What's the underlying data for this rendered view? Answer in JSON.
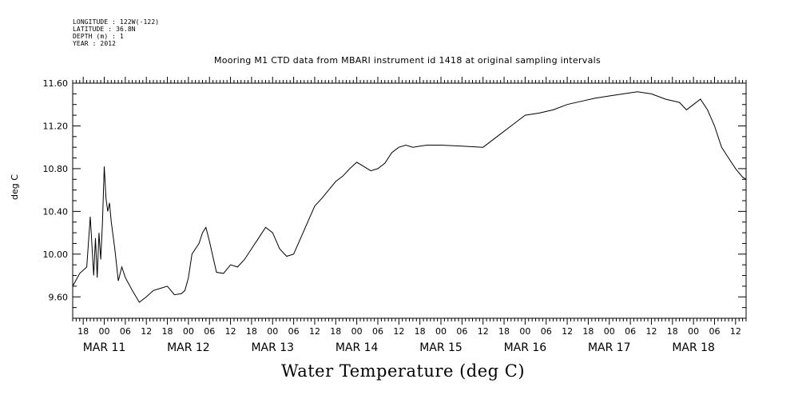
{
  "meta_lines": [
    "LONGITUDE : 122W(-122)",
    "LATITUDE : 36.8N",
    "DEPTH (m) : 1",
    "YEAR : 2012"
  ],
  "chart_data": {
    "type": "line",
    "title": "Mooring M1 CTD data from MBARI instrument id 1418 at original sampling intervals",
    "xlabel": "Water Temperature (deg C)",
    "ylabel": "deg C",
    "ylim": [
      9.4,
      11.6
    ],
    "y_ticks": [
      "9.60",
      "10.00",
      "10.40",
      "10.80",
      "11.20",
      "11.60"
    ],
    "x_hour_ticks": [
      "18",
      "00",
      "06",
      "12",
      "18",
      "00",
      "06",
      "12",
      "18",
      "00",
      "06",
      "12",
      "18",
      "00",
      "06",
      "12",
      "18",
      "00",
      "06",
      "12",
      "18",
      "00",
      "06",
      "12",
      "18",
      "00",
      "06",
      "12",
      "18",
      "00",
      "06",
      "12"
    ],
    "day_labels": [
      "MAR 11",
      "MAR 12",
      "MAR 13",
      "MAR 14",
      "MAR 15",
      "MAR 16",
      "MAR 17",
      "MAR 18"
    ],
    "grid": false,
    "series": [
      {
        "x": [
          "MAR 10 15:00",
          "MAR 10 17:00",
          "MAR 10 19:00",
          "MAR 10 20:00",
          "MAR 10 21:00",
          "MAR 10 21:30",
          "MAR 10 22:00",
          "MAR 10 22:30",
          "MAR 10 23:00",
          "MAR 10 23:30",
          "MAR 11 00:00",
          "MAR 11 00:30",
          "MAR 11 01:00",
          "MAR 11 01:30",
          "MAR 11 02:00",
          "MAR 11 03:00",
          "MAR 11 04:00",
          "MAR 11 05:00",
          "MAR 11 06:00",
          "MAR 11 07:00",
          "MAR 11 08:00",
          "MAR 11 10:00",
          "MAR 11 12:00",
          "MAR 11 14:00",
          "MAR 11 16:00",
          "MAR 11 18:00",
          "MAR 11 20:00",
          "MAR 11 22:00",
          "MAR 11 23:00",
          "MAR 12 00:00",
          "MAR 12 01:00",
          "MAR 12 02:00",
          "MAR 12 03:00",
          "MAR 12 04:00",
          "MAR 12 05:00",
          "MAR 12 06:00",
          "MAR 12 08:00",
          "MAR 12 10:00",
          "MAR 12 12:00",
          "MAR 12 14:00",
          "MAR 12 16:00",
          "MAR 12 18:00",
          "MAR 12 20:00",
          "MAR 12 22:00",
          "MAR 13 00:00",
          "MAR 13 02:00",
          "MAR 13 04:00",
          "MAR 13 06:00",
          "MAR 13 08:00",
          "MAR 13 10:00",
          "MAR 13 12:00",
          "MAR 13 14:00",
          "MAR 13 16:00",
          "MAR 13 18:00",
          "MAR 13 20:00",
          "MAR 13 22:00",
          "MAR 14 00:00",
          "MAR 14 02:00",
          "MAR 14 04:00",
          "MAR 14 06:00",
          "MAR 14 08:00",
          "MAR 14 10:00",
          "MAR 14 12:00",
          "MAR 14 14:00",
          "MAR 14 16:00",
          "MAR 14 18:00",
          "MAR 14 20:00",
          "MAR 15 00:00",
          "MAR 15 06:00",
          "MAR 15 12:00",
          "MAR 15 16:00",
          "MAR 15 20:00",
          "MAR 16 00:00",
          "MAR 16 04:00",
          "MAR 16 08:00",
          "MAR 16 12:00",
          "MAR 16 16:00",
          "MAR 16 20:00",
          "MAR 17 00:00",
          "MAR 17 04:00",
          "MAR 17 08:00",
          "MAR 17 12:00",
          "MAR 17 16:00",
          "MAR 17 20:00",
          "MAR 17 22:00",
          "MAR 18 00:00",
          "MAR 18 02:00",
          "MAR 18 04:00",
          "MAR 18 06:00",
          "MAR 18 08:00",
          "MAR 18 10:00",
          "MAR 18 12:00",
          "MAR 18 14:00",
          "MAR 18 15:00"
        ],
        "values": [
          9.7,
          9.82,
          9.88,
          10.35,
          9.8,
          10.15,
          9.78,
          10.2,
          9.95,
          10.3,
          10.82,
          10.52,
          10.4,
          10.48,
          10.3,
          10.05,
          9.75,
          9.88,
          9.78,
          9.72,
          9.66,
          9.55,
          9.6,
          9.66,
          9.68,
          9.7,
          9.62,
          9.63,
          9.66,
          9.78,
          10.0,
          10.05,
          10.1,
          10.2,
          10.25,
          10.12,
          9.83,
          9.82,
          9.9,
          9.88,
          9.95,
          10.05,
          10.15,
          10.25,
          10.2,
          10.05,
          9.98,
          10.0,
          10.15,
          10.3,
          10.45,
          10.52,
          10.6,
          10.68,
          10.73,
          10.8,
          10.86,
          10.82,
          10.78,
          10.8,
          10.85,
          10.95,
          11.0,
          11.02,
          11.0,
          11.01,
          11.02,
          11.02,
          11.01,
          11.0,
          11.1,
          11.2,
          11.3,
          11.32,
          11.35,
          11.4,
          11.43,
          11.46,
          11.48,
          11.5,
          11.52,
          11.5,
          11.45,
          11.42,
          11.35,
          11.4,
          11.45,
          11.35,
          11.2,
          11.0,
          10.9,
          10.8,
          10.72,
          10.7
        ]
      }
    ]
  }
}
